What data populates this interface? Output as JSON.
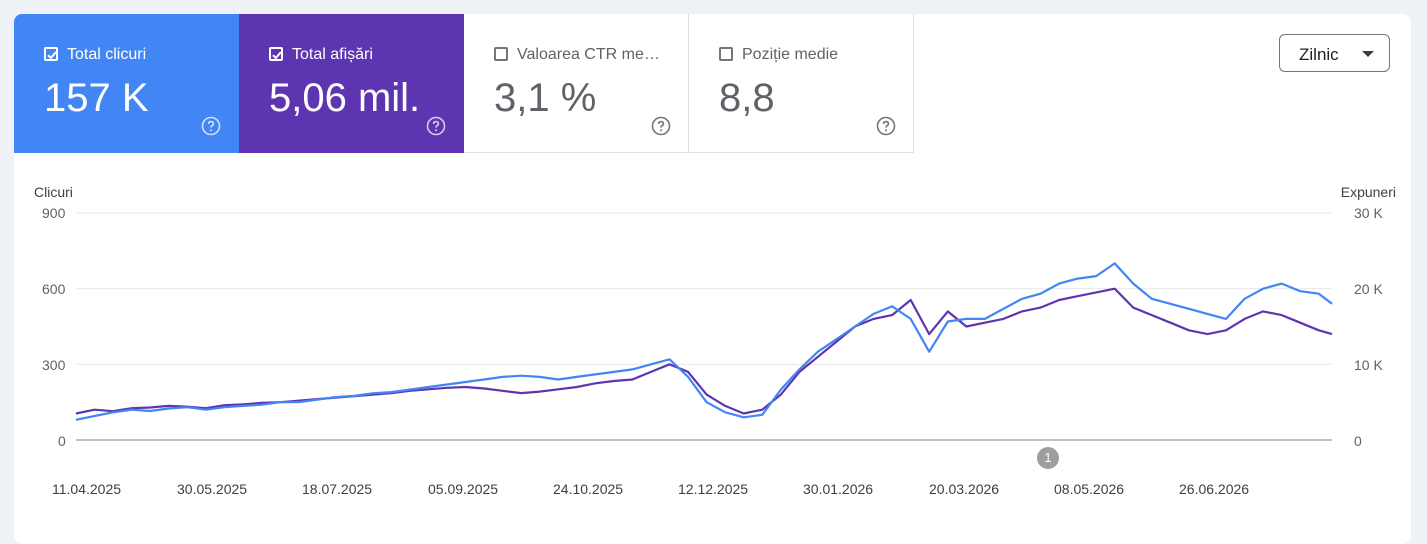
{
  "metrics": [
    {
      "label": "Total clicuri",
      "value": "157 K",
      "checked": true
    },
    {
      "label": "Total afișări",
      "value": "5,06 mil.",
      "checked": true
    },
    {
      "label": "Valoarea CTR me…",
      "value": "3,1 %",
      "checked": false
    },
    {
      "label": "Poziție medie",
      "value": "8,8",
      "checked": false
    }
  ],
  "period_select": {
    "value": "Zilnic"
  },
  "annotation": {
    "label": "1"
  },
  "colors": {
    "clicks": "#4285f4",
    "impressions": "#5e35b1"
  },
  "chart_data": {
    "type": "line",
    "title": "",
    "y_left": {
      "label": "Clicuri",
      "range": [
        0,
        900
      ],
      "ticks": [
        "900",
        "600",
        "300",
        "0"
      ]
    },
    "y_right": {
      "label": "Expuneri",
      "range": [
        0,
        30000
      ],
      "ticks": [
        "30 K",
        "20 K",
        "10 K",
        "0"
      ]
    },
    "x_range": [
      "2025-04-11",
      "2026-07-29"
    ],
    "x_ticks": [
      "11.04.2025",
      "30.05.2025",
      "18.07.2025",
      "05.09.2025",
      "24.10.2025",
      "12.12.2025",
      "30.01.2026",
      "20.03.2026",
      "08.05.2026",
      "26.06.2026"
    ],
    "grid": true,
    "legend": "none",
    "series": [
      {
        "axis": "left",
        "x": [
          "2025-04-11",
          "2025-04-18",
          "2025-04-25",
          "2025-05-02",
          "2025-05-09",
          "2025-05-16",
          "2025-05-23",
          "2025-05-30",
          "2025-06-06",
          "2025-06-13",
          "2025-06-20",
          "2025-06-27",
          "2025-07-04",
          "2025-07-11",
          "2025-07-18",
          "2025-07-25",
          "2025-08-01",
          "2025-08-08",
          "2025-08-15",
          "2025-08-22",
          "2025-08-29",
          "2025-09-05",
          "2025-09-12",
          "2025-09-19",
          "2025-09-26",
          "2025-10-03",
          "2025-10-10",
          "2025-10-17",
          "2025-10-24",
          "2025-10-31",
          "2025-11-07",
          "2025-11-14",
          "2025-11-21",
          "2025-11-28",
          "2025-12-05",
          "2025-12-12",
          "2025-12-19",
          "2025-12-26",
          "2026-01-02",
          "2026-01-09",
          "2026-01-16",
          "2026-01-23",
          "2026-01-30",
          "2026-02-06",
          "2026-02-13",
          "2026-02-20",
          "2026-02-27",
          "2026-03-06",
          "2026-03-13",
          "2026-03-20",
          "2026-03-27",
          "2026-04-03",
          "2026-04-10",
          "2026-04-17",
          "2026-04-24",
          "2026-05-01",
          "2026-05-08",
          "2026-05-15",
          "2026-05-22",
          "2026-05-29",
          "2026-06-05",
          "2026-06-12",
          "2026-06-19",
          "2026-06-26",
          "2026-07-03",
          "2026-07-10",
          "2026-07-17",
          "2026-07-24",
          "2026-07-29"
        ],
        "values": [
          80,
          95,
          110,
          120,
          115,
          125,
          130,
          120,
          130,
          135,
          140,
          150,
          150,
          160,
          170,
          175,
          185,
          190,
          200,
          210,
          220,
          230,
          240,
          250,
          255,
          250,
          240,
          250,
          260,
          270,
          280,
          300,
          320,
          250,
          150,
          110,
          90,
          100,
          200,
          280,
          350,
          400,
          450,
          500,
          530,
          480,
          350,
          470,
          480,
          480,
          520,
          560,
          580,
          620,
          640,
          650,
          700,
          620,
          560,
          540,
          520,
          500,
          480,
          560,
          600,
          620,
          590,
          580,
          540
        ]
      },
      {
        "axis": "right",
        "x": [
          "2025-04-11",
          "2025-04-18",
          "2025-04-25",
          "2025-05-02",
          "2025-05-09",
          "2025-05-16",
          "2025-05-23",
          "2025-05-30",
          "2025-06-06",
          "2025-06-13",
          "2025-06-20",
          "2025-06-27",
          "2025-07-04",
          "2025-07-11",
          "2025-07-18",
          "2025-07-25",
          "2025-08-01",
          "2025-08-08",
          "2025-08-15",
          "2025-08-22",
          "2025-08-29",
          "2025-09-05",
          "2025-09-12",
          "2025-09-19",
          "2025-09-26",
          "2025-10-03",
          "2025-10-10",
          "2025-10-17",
          "2025-10-24",
          "2025-10-31",
          "2025-11-07",
          "2025-11-14",
          "2025-11-21",
          "2025-11-28",
          "2025-12-05",
          "2025-12-12",
          "2025-12-19",
          "2025-12-26",
          "2026-01-02",
          "2026-01-09",
          "2026-01-16",
          "2026-01-23",
          "2026-01-30",
          "2026-02-06",
          "2026-02-13",
          "2026-02-20",
          "2026-02-27",
          "2026-03-06",
          "2026-03-13",
          "2026-03-20",
          "2026-03-27",
          "2026-04-03",
          "2026-04-10",
          "2026-04-17",
          "2026-04-24",
          "2026-05-01",
          "2026-05-08",
          "2026-05-15",
          "2026-05-22",
          "2026-05-29",
          "2026-06-05",
          "2026-06-12",
          "2026-06-19",
          "2026-06-26",
          "2026-07-03",
          "2026-07-10",
          "2026-07-17",
          "2026-07-24",
          "2026-07-29"
        ],
        "values": [
          3500,
          4000,
          3800,
          4200,
          4300,
          4500,
          4400,
          4200,
          4600,
          4700,
          4900,
          5000,
          5200,
          5400,
          5600,
          5800,
          6000,
          6200,
          6500,
          6700,
          6900,
          7000,
          6800,
          6500,
          6200,
          6400,
          6700,
          7000,
          7500,
          7800,
          8000,
          9000,
          10000,
          9000,
          6000,
          4500,
          3500,
          4000,
          6000,
          9000,
          11000,
          13000,
          15000,
          16000,
          16500,
          18500,
          14000,
          17000,
          15000,
          15500,
          16000,
          17000,
          17500,
          18500,
          19000,
          19500,
          20000,
          17500,
          16500,
          15500,
          14500,
          14000,
          14500,
          16000,
          17000,
          16500,
          15500,
          14500,
          14000
        ]
      }
    ]
  }
}
